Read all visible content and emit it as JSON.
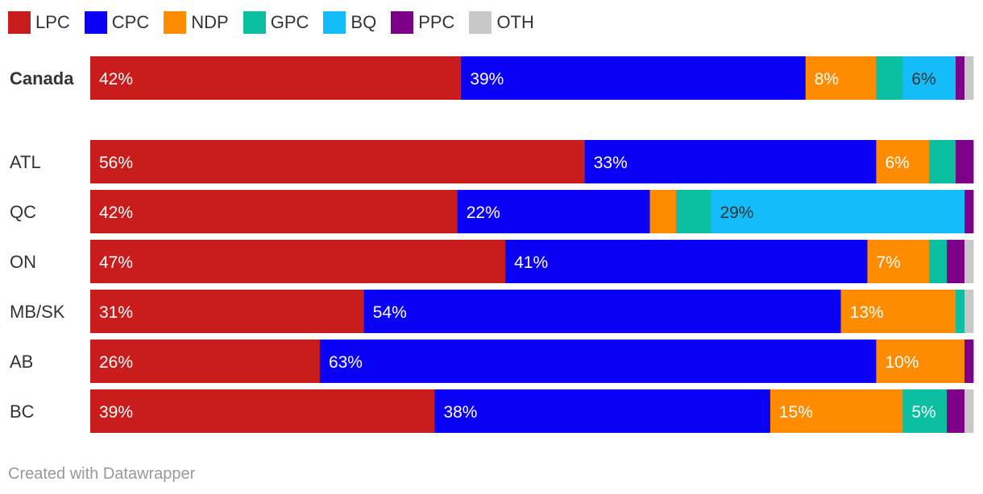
{
  "colors": {
    "LPC": "#c91c1c",
    "CPC": "#0a00f5",
    "NDP": "#ff8c00",
    "GPC": "#0bbfa0",
    "BQ": "#14bdfa",
    "PPC": "#7d0088",
    "OTH": "#c8c8c8"
  },
  "chart_data": {
    "type": "bar",
    "orientation": "horizontal-stacked-100",
    "legend_placement": "top-left",
    "parties": [
      "LPC",
      "CPC",
      "NDP",
      "GPC",
      "BQ",
      "PPC",
      "OTH"
    ],
    "rows": [
      {
        "label": "Canada",
        "bold": true,
        "values": [
          42,
          39,
          8,
          3,
          6,
          1,
          1
        ],
        "labels": [
          "42%",
          "39%",
          "8%",
          "",
          "6%",
          "",
          ""
        ]
      },
      {
        "label": "ATL",
        "bold": false,
        "values": [
          56,
          33,
          6,
          3,
          0,
          2,
          0
        ],
        "labels": [
          "56%",
          "33%",
          "6%",
          "",
          "",
          "",
          ""
        ]
      },
      {
        "label": "QC",
        "bold": false,
        "values": [
          42,
          22,
          3,
          4,
          29,
          1,
          0
        ],
        "labels": [
          "42%",
          "22%",
          "",
          "",
          "29%",
          "",
          ""
        ]
      },
      {
        "label": "ON",
        "bold": false,
        "values": [
          47,
          41,
          7,
          2,
          0,
          2,
          1
        ],
        "labels": [
          "47%",
          "41%",
          "7%",
          "",
          "",
          "",
          ""
        ]
      },
      {
        "label": "MB/SK",
        "bold": false,
        "values": [
          31,
          54,
          13,
          1,
          0,
          0,
          1
        ],
        "labels": [
          "31%",
          "54%",
          "13%",
          "",
          "",
          "",
          ""
        ]
      },
      {
        "label": "AB",
        "bold": false,
        "values": [
          26,
          63,
          10,
          0,
          0,
          1,
          0
        ],
        "labels": [
          "26%",
          "63%",
          "10%",
          "",
          "",
          "",
          ""
        ]
      },
      {
        "label": "BC",
        "bold": false,
        "values": [
          39,
          38,
          15,
          5,
          0,
          2,
          1
        ],
        "labels": [
          "39%",
          "38%",
          "15%",
          "5%",
          "",
          "",
          ""
        ]
      }
    ]
  },
  "footer": {
    "credit": "Created with Datawrapper"
  }
}
